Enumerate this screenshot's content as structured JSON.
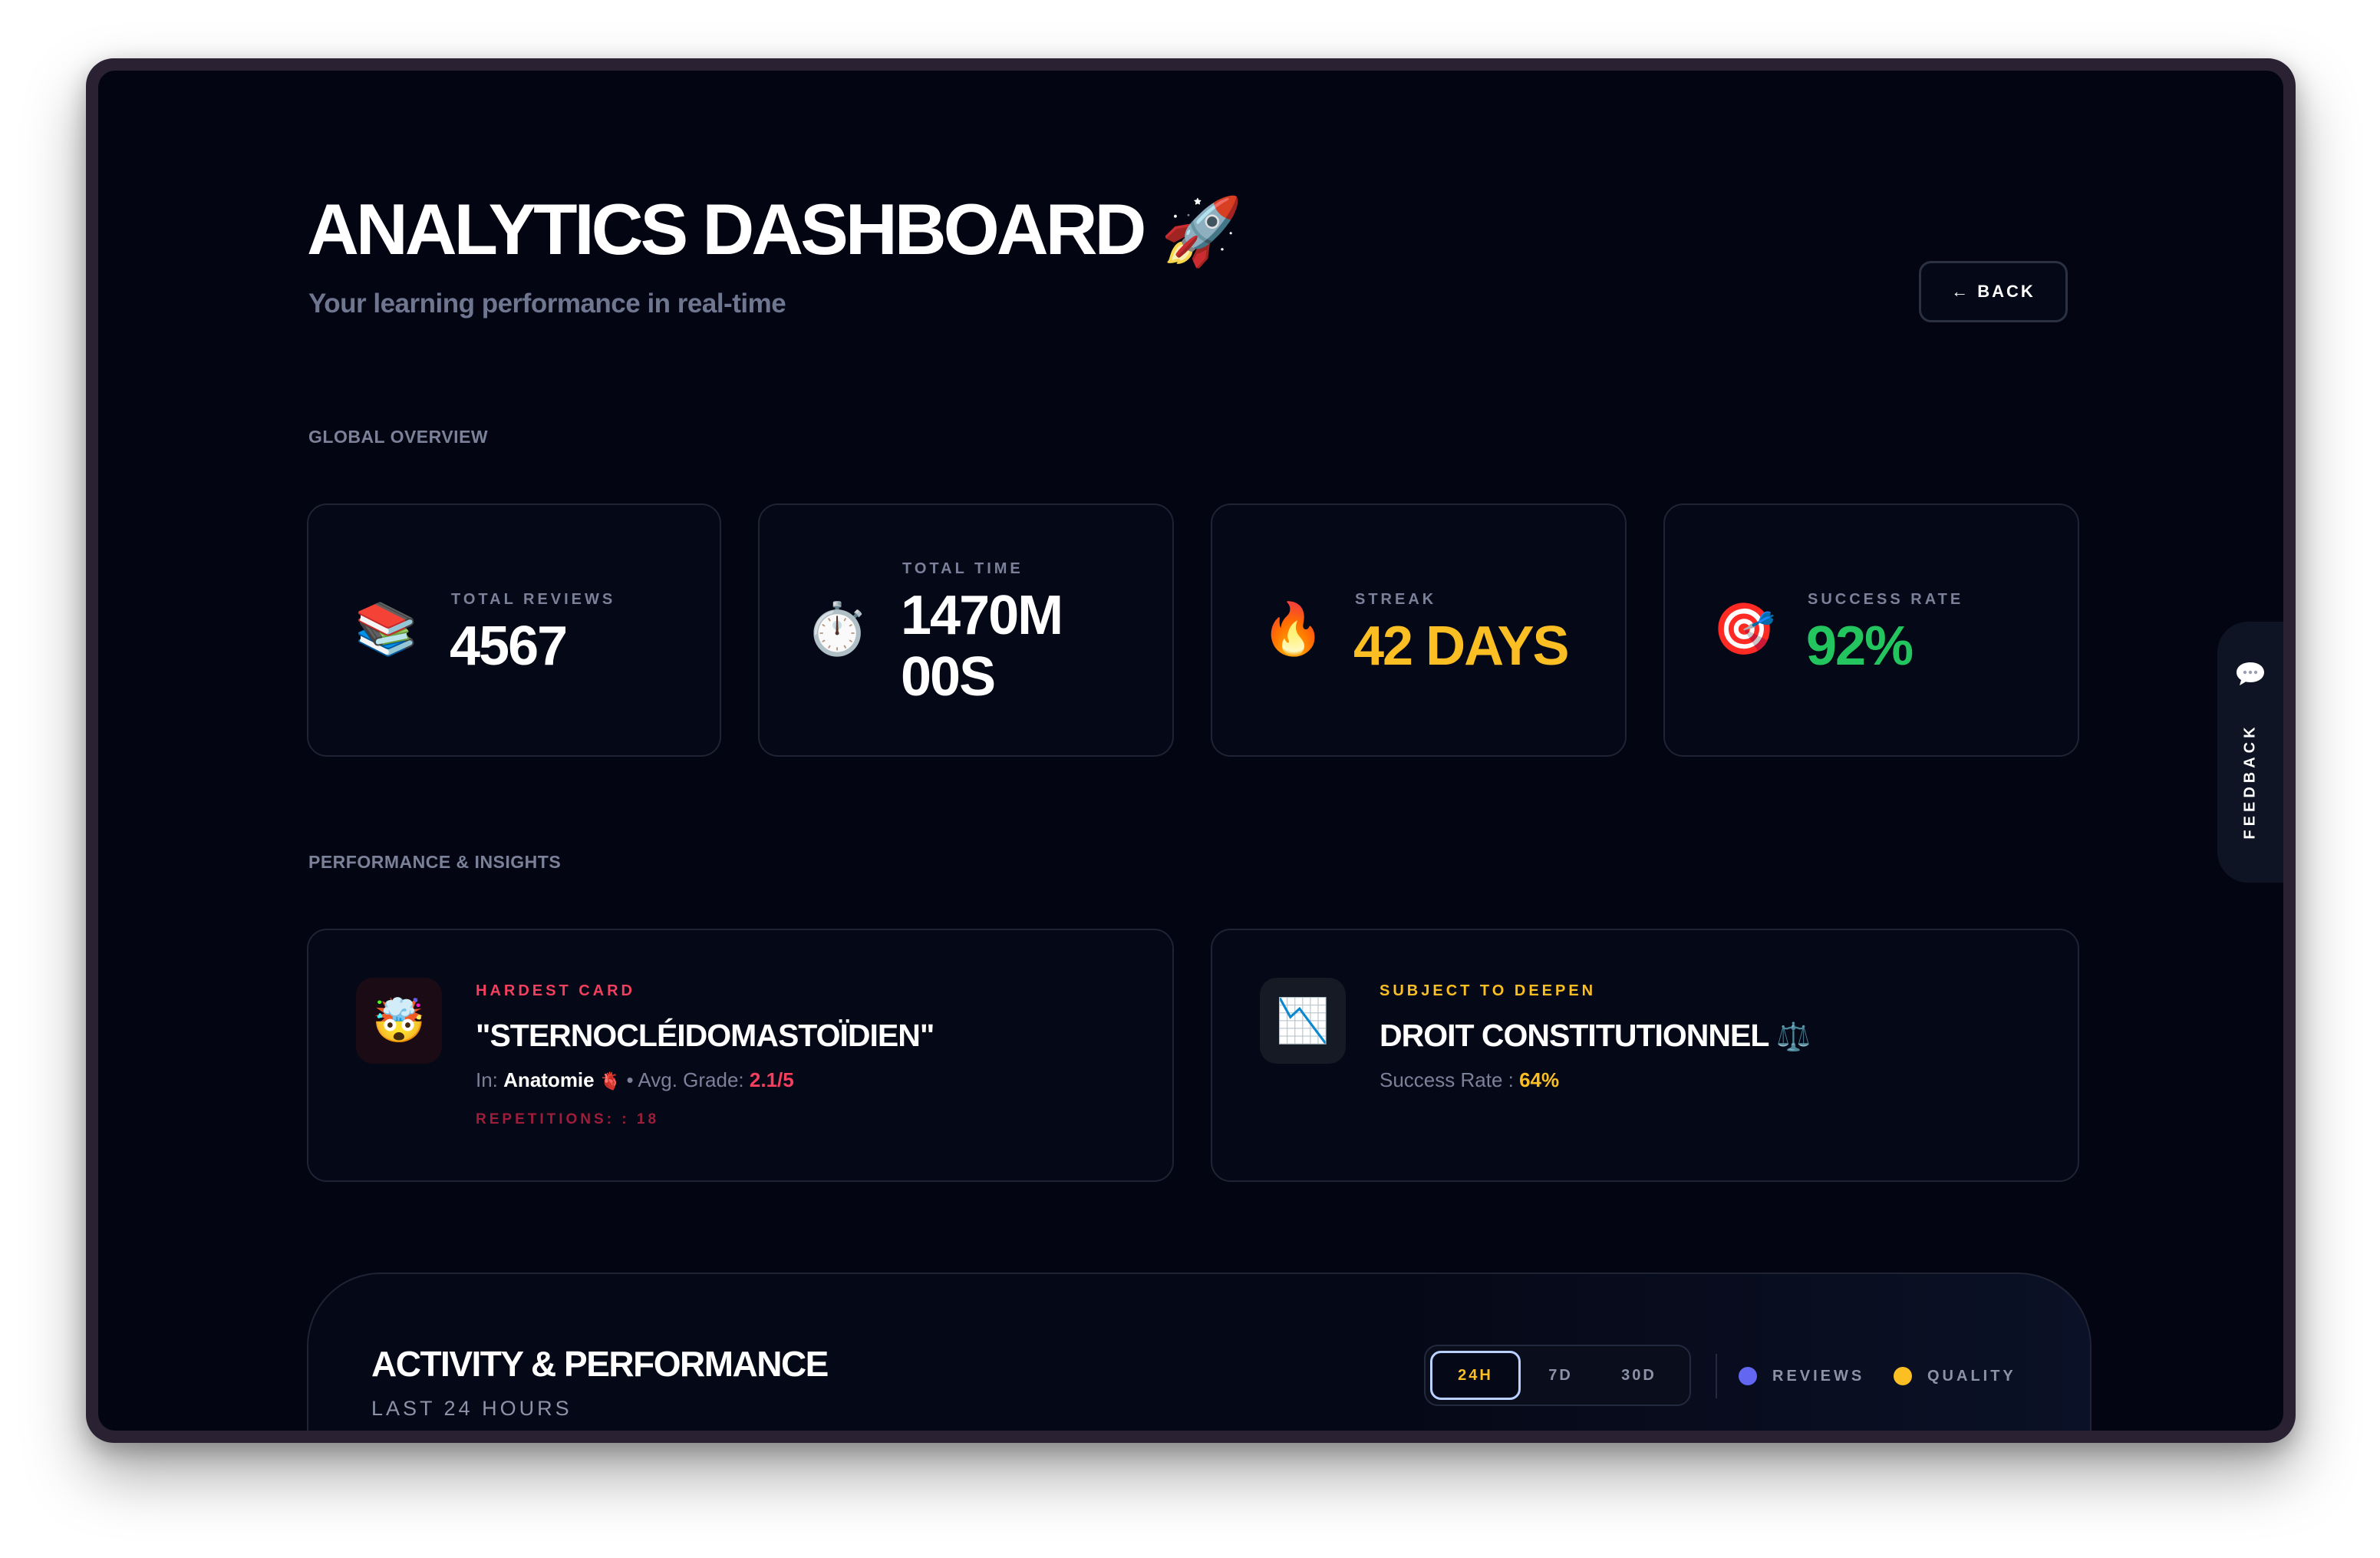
{
  "header": {
    "title": "ANALYTICS DASHBOARD",
    "title_emoji": "🚀",
    "subtitle": "Your learning performance in real-time",
    "back_label": "← BACK"
  },
  "global_overview": {
    "section_label": "GLOBAL OVERVIEW",
    "stats": [
      {
        "icon": "📚",
        "label": "TOTAL REVIEWS",
        "value": "4567",
        "color": "#ffffff"
      },
      {
        "icon": "⏱️",
        "label": "TOTAL TIME",
        "value_line1": "1470M",
        "value_line2": "00S",
        "color": "#ffffff"
      },
      {
        "icon": "🔥",
        "label": "STREAK",
        "value": "42 DAYS",
        "color": "#fbbf24"
      },
      {
        "icon": "🎯",
        "label": "SUCCESS RATE",
        "value": "92%",
        "color": "#22c55e"
      }
    ]
  },
  "insights": {
    "section_label": "PERFORMANCE & INSIGHTS",
    "hardest": {
      "icon": "🤯",
      "label": "HARDEST CARD",
      "title": "\"STERNOCLÉIDOMASTOÏDIEN\"",
      "in_prefix": "In:",
      "subject": "Anatomie",
      "subject_emoji": "🫀",
      "grade_prefix": "• Avg. Grade:",
      "grade": "2.1/5",
      "repetitions": "REPETITIONS: : 18",
      "accent": "#f43f5e"
    },
    "deepen": {
      "icon": "📉",
      "label": "SUBJECT TO DEEPEN",
      "title": "DROIT CONSTITUTIONNEL",
      "title_emoji": "⚖️",
      "rate_prefix": "Success Rate :",
      "rate": "64%",
      "accent": "#fbbf24"
    }
  },
  "activity": {
    "title": "ACTIVITY & PERFORMANCE",
    "subtitle": "LAST 24 HOURS",
    "periods": [
      "24H",
      "7D",
      "30D"
    ],
    "active_period": "24H",
    "legend": [
      {
        "label": "REVIEWS",
        "color": "#6366f1"
      },
      {
        "label": "QUALITY",
        "color": "#fbbf24"
      }
    ]
  },
  "feedback": {
    "label": "FEEDBACK",
    "icon": "speech-bubble-icon"
  }
}
